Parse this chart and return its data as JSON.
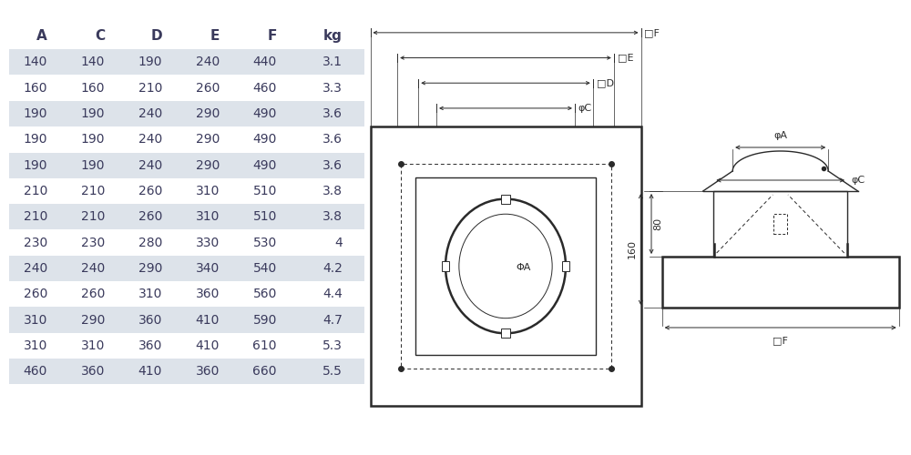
{
  "table_headers": [
    "A",
    "C",
    "D",
    "E",
    "F",
    "kg"
  ],
  "table_rows": [
    [
      "140",
      "140",
      "190",
      "240",
      "440",
      "3.1"
    ],
    [
      "160",
      "160",
      "210",
      "260",
      "460",
      "3.3"
    ],
    [
      "190",
      "190",
      "240",
      "290",
      "490",
      "3.6"
    ],
    [
      "190",
      "190",
      "240",
      "290",
      "490",
      "3.6"
    ],
    [
      "190",
      "190",
      "240",
      "290",
      "490",
      "3.6"
    ],
    [
      "210",
      "210",
      "260",
      "310",
      "510",
      "3.8"
    ],
    [
      "210",
      "210",
      "260",
      "310",
      "510",
      "3.8"
    ],
    [
      "230",
      "230",
      "280",
      "330",
      "530",
      "4"
    ],
    [
      "240",
      "240",
      "290",
      "340",
      "540",
      "4.2"
    ],
    [
      "260",
      "260",
      "310",
      "360",
      "560",
      "4.4"
    ],
    [
      "310",
      "290",
      "360",
      "410",
      "590",
      "4.7"
    ],
    [
      "310",
      "310",
      "360",
      "410",
      "610",
      "5.3"
    ],
    [
      "460",
      "360",
      "410",
      "360",
      "660",
      "5.5"
    ]
  ],
  "row_bg_even": "#dde3ea",
  "row_bg_odd": "#ffffff",
  "text_color": "#3a3a5c",
  "line_color": "#2a2a2a",
  "bg_color": "#ffffff"
}
